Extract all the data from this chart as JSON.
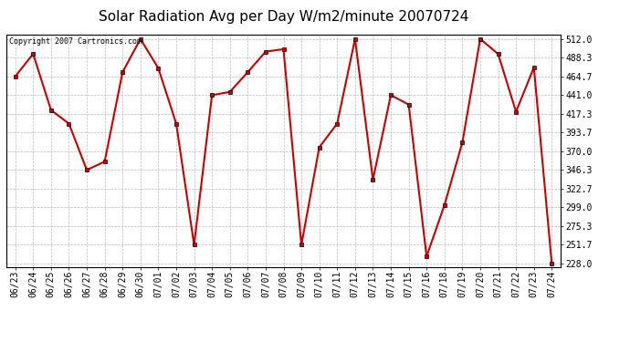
{
  "title": "Solar Radiation Avg per Day W/m2/minute 20070724",
  "copyright_text": "Copyright 2007 Cartronics.com",
  "dates": [
    "06/23",
    "06/24",
    "06/25",
    "06/26",
    "06/27",
    "06/28",
    "06/29",
    "06/30",
    "07/01",
    "07/02",
    "07/03",
    "07/04",
    "07/05",
    "07/06",
    "07/07",
    "07/08",
    "07/09",
    "07/10",
    "07/11",
    "07/12",
    "07/13",
    "07/14",
    "07/15",
    "07/16",
    "07/18",
    "07/19",
    "07/20",
    "07/21",
    "07/22",
    "07/23",
    "07/24"
  ],
  "values": [
    464.7,
    493.0,
    422.0,
    405.0,
    346.3,
    357.0,
    470.0,
    512.0,
    475.0,
    405.0,
    251.7,
    441.0,
    445.0,
    470.0,
    496.0,
    499.0,
    251.7,
    375.0,
    405.0,
    512.0,
    334.0,
    441.0,
    429.0,
    237.0,
    302.0,
    381.0,
    512.0,
    493.0,
    420.0,
    476.0,
    228.0
  ],
  "line_color": "#cc0000",
  "marker": "s",
  "marker_size": 2.5,
  "line_width": 1.5,
  "bg_color": "#ffffff",
  "plot_bg_color": "#ffffff",
  "grid_color": "#bbbbbb",
  "grid_style": "--",
  "title_fontsize": 11,
  "ytick_labels": [
    "228.0",
    "251.7",
    "275.3",
    "299.0",
    "322.7",
    "346.3",
    "370.0",
    "393.7",
    "417.3",
    "441.0",
    "464.7",
    "488.3",
    "512.0"
  ],
  "ytick_values": [
    228.0,
    251.7,
    275.3,
    299.0,
    322.7,
    346.3,
    370.0,
    393.7,
    417.3,
    441.0,
    464.7,
    488.3,
    512.0
  ],
  "ylim": [
    224.0,
    518.0
  ],
  "tick_fontsize": 7,
  "copyright_fontsize": 6
}
